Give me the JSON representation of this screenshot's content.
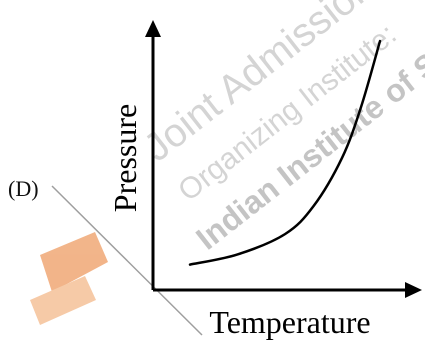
{
  "option_label": "(D)",
  "chart_data": {
    "type": "line",
    "xlabel": "Temperature",
    "ylabel": "Pressure",
    "grid": false,
    "axis_ticks": false,
    "series": [
      {
        "shape": "increasing, concave-up (exponential-like)",
        "x": [
          0.0,
          0.25,
          0.5,
          0.65,
          0.8,
          0.9,
          1.0
        ],
        "y": [
          0.1,
          0.14,
          0.22,
          0.33,
          0.52,
          0.72,
          0.98
        ]
      }
    ]
  },
  "watermark": {
    "lines": [
      "Joint Admission",
      "Organizing Institute:",
      "Indian Institute of Science"
    ],
    "color": "#c8c8c8",
    "logo_color": "#e8782a"
  }
}
